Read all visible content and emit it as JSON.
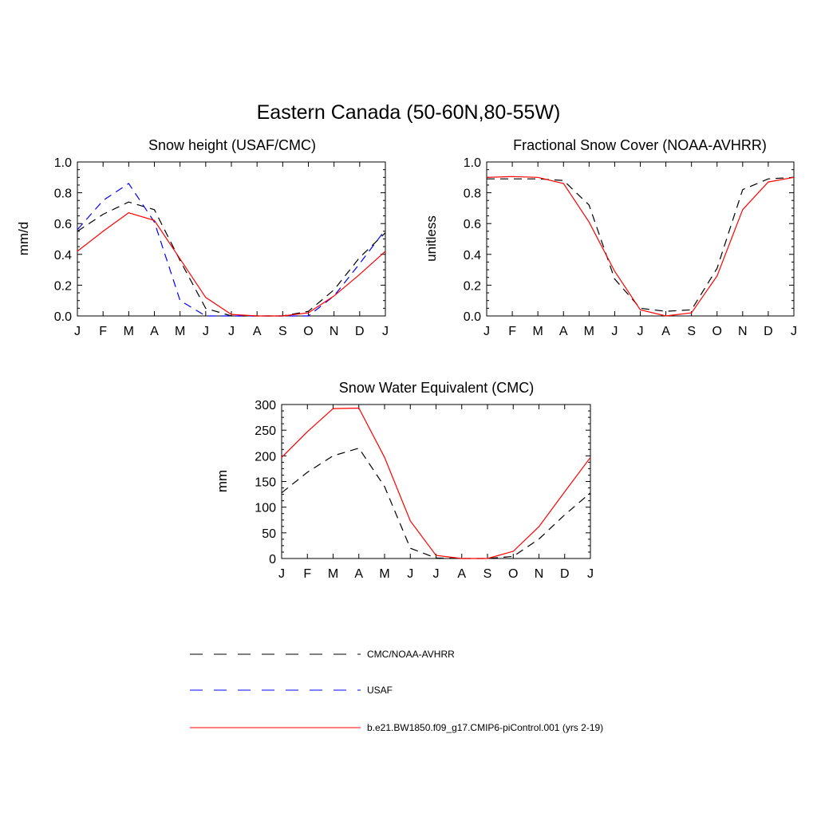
{
  "page": {
    "title": "Eastern Canada (50-60N,80-55W)"
  },
  "colors": {
    "obs": "#000000",
    "usaf": "#0000ff",
    "model": "#ff0000"
  },
  "chart_data": [
    {
      "type": "line",
      "title": "Snow height (USAF/CMC)",
      "xlabel": "",
      "ylabel": "mm/d",
      "categories": [
        "J",
        "F",
        "M",
        "A",
        "M",
        "J",
        "J",
        "A",
        "S",
        "O",
        "N",
        "D",
        "J"
      ],
      "ylim": [
        0,
        1.0
      ],
      "yticks": [
        "0.0",
        "0.2",
        "0.4",
        "0.6",
        "0.8",
        "1.0"
      ],
      "series": [
        {
          "name": "CMC/NOAA-AVHRR",
          "style": "dashed",
          "color": "#000000",
          "values": [
            0.55,
            0.66,
            0.74,
            0.69,
            0.36,
            0.05,
            0.0,
            0.0,
            0.0,
            0.03,
            0.17,
            0.38,
            0.54
          ]
        },
        {
          "name": "USAF",
          "style": "dashed",
          "color": "#0000ff",
          "values": [
            0.56,
            0.75,
            0.86,
            0.61,
            0.1,
            0.0,
            0.0,
            0.0,
            0.0,
            0.0,
            0.13,
            0.34,
            0.56
          ]
        },
        {
          "name": "b.e21.BW1850.f09_g17.CMIP6-piControl.001 (yrs 2-19)",
          "style": "solid",
          "color": "#ff0000",
          "values": [
            0.42,
            0.55,
            0.67,
            0.62,
            0.37,
            0.12,
            0.01,
            0.0,
            0.0,
            0.02,
            0.13,
            0.27,
            0.42
          ]
        }
      ]
    },
    {
      "type": "line",
      "title": "Fractional Snow Cover (NOAA-AVHRR)",
      "xlabel": "",
      "ylabel": "unitless",
      "categories": [
        "J",
        "F",
        "M",
        "A",
        "M",
        "J",
        "J",
        "A",
        "S",
        "O",
        "N",
        "D",
        "J"
      ],
      "ylim": [
        0,
        1.0
      ],
      "yticks": [
        "0.0",
        "0.2",
        "0.4",
        "0.6",
        "0.8",
        "1.0"
      ],
      "series": [
        {
          "name": "CMC/NOAA-AVHRR",
          "style": "dashed",
          "color": "#000000",
          "values": [
            0.89,
            0.89,
            0.89,
            0.88,
            0.72,
            0.24,
            0.05,
            0.03,
            0.04,
            0.31,
            0.82,
            0.89,
            0.9
          ]
        },
        {
          "name": "b.e21.BW1850.f09_g17.CMIP6-piControl.001 (yrs 2-19)",
          "style": "solid",
          "color": "#ff0000",
          "values": [
            0.9,
            0.905,
            0.9,
            0.86,
            0.61,
            0.29,
            0.04,
            0.0,
            0.02,
            0.26,
            0.69,
            0.87,
            0.9
          ]
        }
      ]
    },
    {
      "type": "line",
      "title": "Snow Water Equivalent (CMC)",
      "xlabel": "",
      "ylabel": "mm",
      "categories": [
        "J",
        "F",
        "M",
        "A",
        "M",
        "J",
        "J",
        "A",
        "S",
        "O",
        "N",
        "D",
        "J"
      ],
      "ylim": [
        0,
        300
      ],
      "yticks": [
        "0",
        "50",
        "100",
        "150",
        "200",
        "250",
        "300"
      ],
      "series": [
        {
          "name": "CMC/NOAA-AVHRR",
          "style": "dashed",
          "color": "#000000",
          "values": [
            128,
            168,
            200,
            215,
            140,
            20,
            1,
            0,
            0,
            4,
            38,
            85,
            128
          ]
        },
        {
          "name": "b.e21.BW1850.f09_g17.CMIP6-piControl.001 (yrs 2-19)",
          "style": "solid",
          "color": "#ff0000",
          "values": [
            197,
            247,
            292,
            293,
            197,
            73,
            6,
            0,
            0,
            14,
            62,
            130,
            197
          ]
        }
      ]
    }
  ],
  "legend": {
    "position": "bottom-center",
    "items": [
      {
        "label": "CMC/NOAA-AVHRR",
        "style": "dashed",
        "color": "#000000"
      },
      {
        "label": "USAF",
        "style": "dashed",
        "color": "#0000ff"
      },
      {
        "label": "b.e21.BW1850.f09_g17.CMIP6-piControl.001 (yrs 2-19)",
        "style": "solid",
        "color": "#ff0000"
      }
    ]
  }
}
